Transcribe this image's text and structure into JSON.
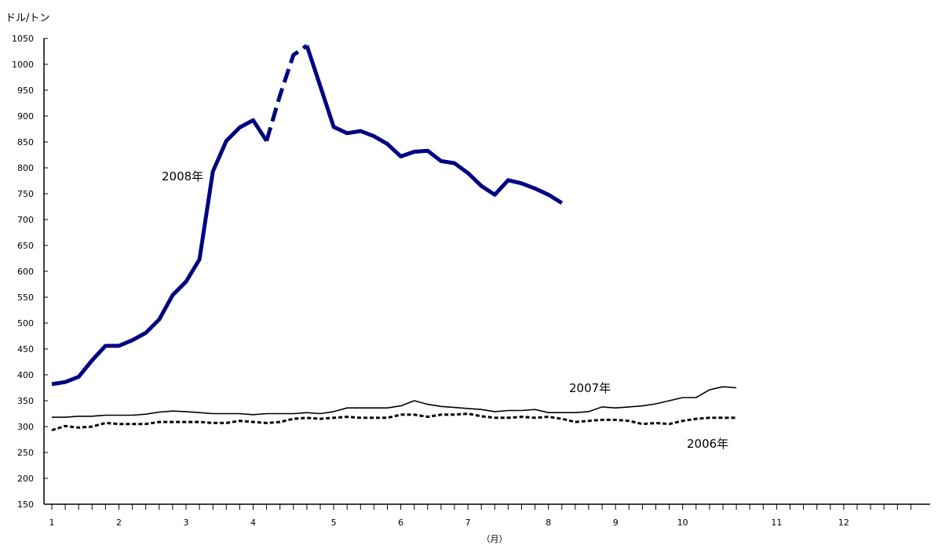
{
  "chart_data": {
    "type": "line",
    "title": "",
    "ylabel": "ドル/トン",
    "xlabel": "（月）",
    "ylim": [
      150,
      1050
    ],
    "y_ticks": [
      150,
      200,
      250,
      300,
      350,
      400,
      450,
      500,
      550,
      600,
      650,
      700,
      750,
      800,
      850,
      900,
      950,
      1000,
      1050
    ],
    "x_tick_labels": [
      "1",
      "2",
      "3",
      "4",
      "5",
      "6",
      "7",
      "8",
      "9",
      "10",
      "11",
      "12"
    ],
    "x_tick_positions": [
      0,
      5,
      10,
      15,
      21,
      26,
      31,
      37,
      42,
      47,
      54,
      59
    ],
    "x_minor_tick_count": 64,
    "grid": false,
    "legend": "none (series labeled directly on chart)",
    "series": [
      {
        "name": "2008年",
        "style": "thick-solid",
        "color": "#000080",
        "gap_dashed_between_index": [
          16,
          19
        ],
        "values": [
          382,
          386,
          396,
          428,
          456,
          456,
          467,
          481,
          507,
          554,
          580,
          623,
          793,
          852,
          878,
          892,
          852,
          940,
          1018,
          1036,
          958,
          879,
          867,
          871,
          861,
          846,
          822,
          831,
          833,
          813,
          809,
          790,
          765,
          748,
          776,
          770,
          760,
          748,
          732
        ]
      },
      {
        "name": "2007年",
        "style": "thin-solid",
        "color": "#000000",
        "values": [
          318,
          318,
          320,
          320,
          322,
          322,
          322,
          324,
          328,
          330,
          329,
          327,
          325,
          325,
          325,
          323,
          325,
          325,
          325,
          327,
          325,
          329,
          336,
          336,
          336,
          336,
          340,
          350,
          343,
          339,
          337,
          335,
          333,
          329,
          331,
          331,
          333,
          327,
          327,
          327,
          329,
          338,
          336,
          338,
          340,
          344,
          350,
          356,
          356,
          371,
          377,
          375
        ]
      },
      {
        "name": "2006年",
        "style": "dashed",
        "color": "#000000",
        "values": [
          293,
          301,
          298,
          300,
          307,
          305,
          305,
          305,
          309,
          309,
          309,
          309,
          307,
          307,
          311,
          309,
          307,
          309,
          315,
          317,
          315,
          317,
          319,
          317,
          317,
          317,
          323,
          323,
          319,
          323,
          323,
          325,
          320,
          317,
          317,
          319,
          317,
          319,
          315,
          309,
          311,
          313,
          313,
          311,
          305,
          307,
          305,
          311,
          315,
          317,
          317,
          317
        ]
      }
    ]
  }
}
